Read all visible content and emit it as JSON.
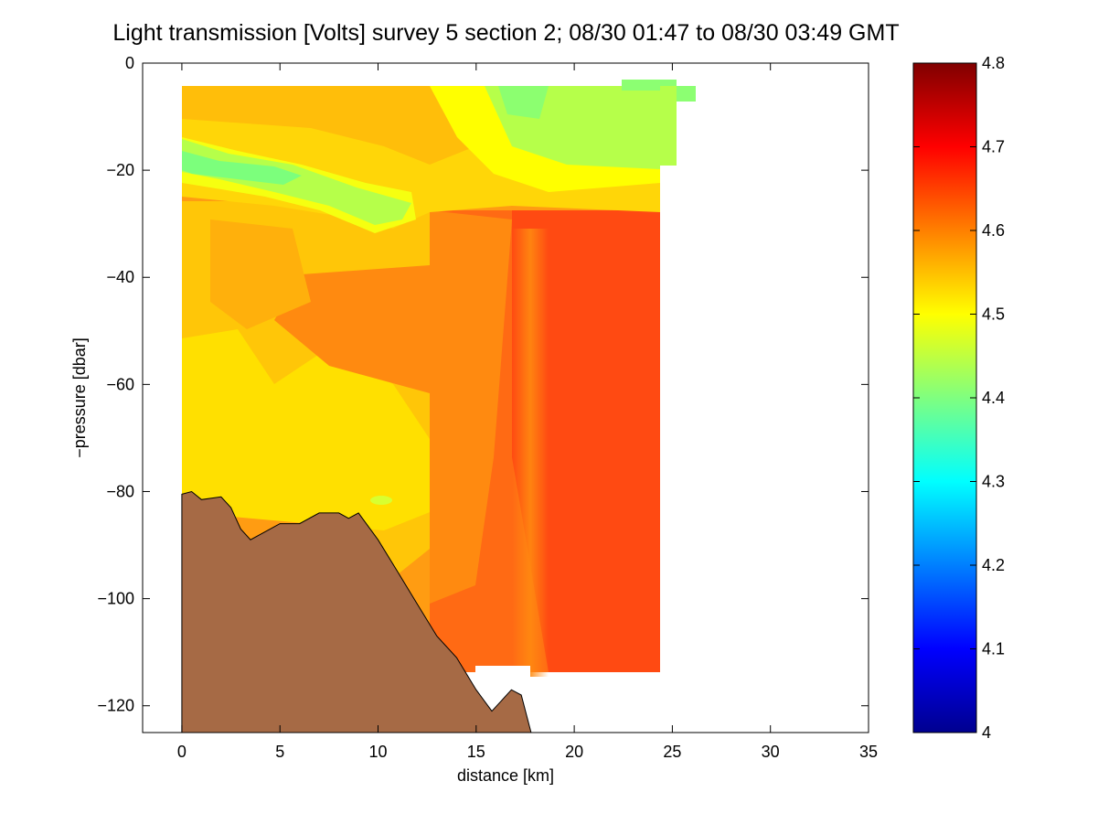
{
  "chart_data": {
    "type": "heatmap",
    "title": "Light transmission [Volts] survey 5 section 2; 08/30 01:47 to 08/30 03:49 GMT",
    "xlabel": "distance [km]",
    "ylabel": "−pressure [dbar]",
    "xlim": [
      -2,
      35
    ],
    "ylim": [
      -125,
      0
    ],
    "xticks": [
      0,
      5,
      10,
      15,
      20,
      25,
      30,
      35
    ],
    "yticks": [
      0,
      -20,
      -40,
      -60,
      -80,
      -100,
      -120
    ],
    "ytick_labels": [
      "0",
      "−20",
      "−40",
      "−60",
      "−80",
      "−100",
      "−120"
    ],
    "colorbar": {
      "range": [
        4,
        4.8
      ],
      "ticks": [
        4,
        4.1,
        4.2,
        4.3,
        4.4,
        4.5,
        4.6,
        4.7,
        4.8
      ],
      "tick_labels": [
        "4",
        "4.1",
        "4.2",
        "4.3",
        "4.4",
        "4.5",
        "4.6",
        "4.7",
        "4.8"
      ],
      "colormap": "jet"
    },
    "data_extent": {
      "x": [
        0,
        24.3
      ],
      "y": [
        -114,
        -4.5
      ]
    },
    "grid": false,
    "bottom_fill_color": "#a66a45",
    "seafloor_profile": [
      [
        0,
        -80.5
      ],
      [
        0.5,
        -80
      ],
      [
        1,
        -81.5
      ],
      [
        2,
        -81
      ],
      [
        2.5,
        -83
      ],
      [
        3,
        -87
      ],
      [
        3.5,
        -89
      ],
      [
        4,
        -88
      ],
      [
        5,
        -86
      ],
      [
        6,
        -86
      ],
      [
        7,
        -84
      ],
      [
        8,
        -84
      ],
      [
        8.5,
        -85
      ],
      [
        9,
        -84
      ],
      [
        10,
        -89
      ],
      [
        11,
        -95
      ],
      [
        12,
        -101
      ],
      [
        13,
        -107
      ],
      [
        14,
        -111
      ],
      [
        15,
        -117
      ],
      [
        15.8,
        -121
      ],
      [
        16.3,
        -119
      ],
      [
        16.8,
        -117
      ],
      [
        17.3,
        -118
      ],
      [
        17.8,
        -125
      ]
    ],
    "approx_fields": [
      {
        "region": "surface layer x 0-24 km, 5-30 dbar",
        "value": 4.52
      },
      {
        "region": "thin band near 20 dbar, x 0-11 km",
        "value": 4.43
      },
      {
        "region": "near-surface patch x 16-26 km",
        "value": 4.46
      },
      {
        "region": "mid-water x 0-12 km, 30-80 dbar",
        "value": 4.56
      },
      {
        "region": "deep column x 14-24 km, 40-114 dbar",
        "value": 4.64
      }
    ]
  }
}
